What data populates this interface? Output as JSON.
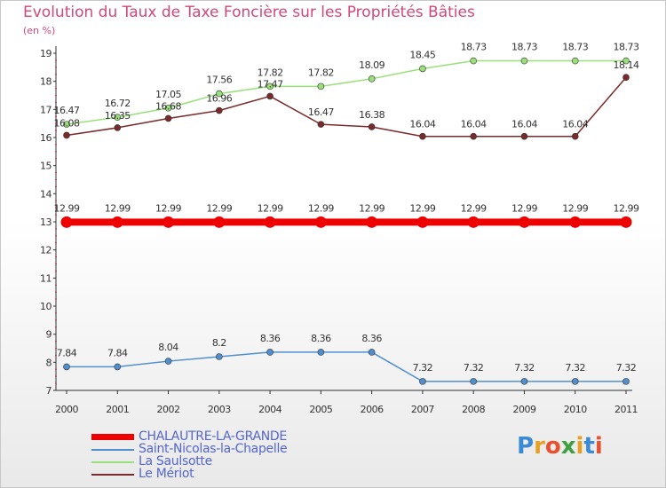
{
  "chart_data": {
    "type": "line",
    "title": "Evolution du Taux de Taxe Foncière sur les Propriétés Bâties",
    "ylabel": "(en %)",
    "xlabel": "",
    "categories": [
      "2000",
      "2001",
      "2002",
      "2003",
      "2004",
      "2005",
      "2006",
      "2007",
      "2008",
      "2009",
      "2010",
      "2011"
    ],
    "ylim": [
      7,
      19
    ],
    "yticks": [
      7,
      8,
      9,
      10,
      11,
      12,
      13,
      14,
      15,
      16,
      17,
      18,
      19
    ],
    "grid": false,
    "legend_position": "bottom-left",
    "series": [
      {
        "name": "CHALAUTRE-LA-GRANDE",
        "color": "#ee0000",
        "values": [
          12.99,
          12.99,
          12.99,
          12.99,
          12.99,
          12.99,
          12.99,
          12.99,
          12.99,
          12.99,
          12.99,
          12.99
        ],
        "labels": [
          "12.99",
          "12.99",
          "12.99",
          "12.99",
          "12.99",
          "12.99",
          "12.99",
          "12.99",
          "12.99",
          "12.99",
          "12.99",
          "12.99"
        ]
      },
      {
        "name": "Saint-Nicolas-la-Chapelle",
        "color": "#4f8fcf",
        "values": [
          7.84,
          7.84,
          8.04,
          8.2,
          8.36,
          8.36,
          8.36,
          7.32,
          7.32,
          7.32,
          7.32,
          7.32
        ],
        "labels": [
          "7.84",
          "7.84",
          "8.04",
          "8.2",
          "8.36",
          "8.36",
          "8.36",
          "7.32",
          "7.32",
          "7.32",
          "7.32",
          "7.32"
        ]
      },
      {
        "name": "La Saulsotte",
        "color": "#99e07a",
        "values": [
          16.47,
          16.72,
          17.05,
          17.56,
          17.82,
          17.82,
          18.09,
          18.45,
          18.73,
          18.73,
          18.73,
          18.73
        ],
        "labels": [
          "16.47",
          "16.72",
          "17.05",
          "17.56",
          "17.82",
          "17.82",
          "18.09",
          "18.45",
          "18.73",
          "18.73",
          "18.73",
          "18.73"
        ]
      },
      {
        "name": "Le Mériot",
        "color": "#7a2a2a",
        "values": [
          16.08,
          16.35,
          16.68,
          16.96,
          17.47,
          16.47,
          16.38,
          16.04,
          16.04,
          16.04,
          16.04,
          18.14
        ],
        "labels": [
          "16.08",
          "16.35",
          "16.68",
          "16.96",
          "17.47",
          "16.47",
          "16.38",
          "16.04",
          "16.04",
          "16.04",
          "16.04",
          "18.14"
        ]
      }
    ]
  },
  "logo": {
    "letters": [
      "P",
      "r",
      "o",
      "x",
      "i",
      "t",
      "i"
    ],
    "colors": [
      "#3a8ad6",
      "#e8a020",
      "#e85030",
      "#40a040",
      "#e8a020",
      "#3a8ad6",
      "#e85030"
    ]
  }
}
